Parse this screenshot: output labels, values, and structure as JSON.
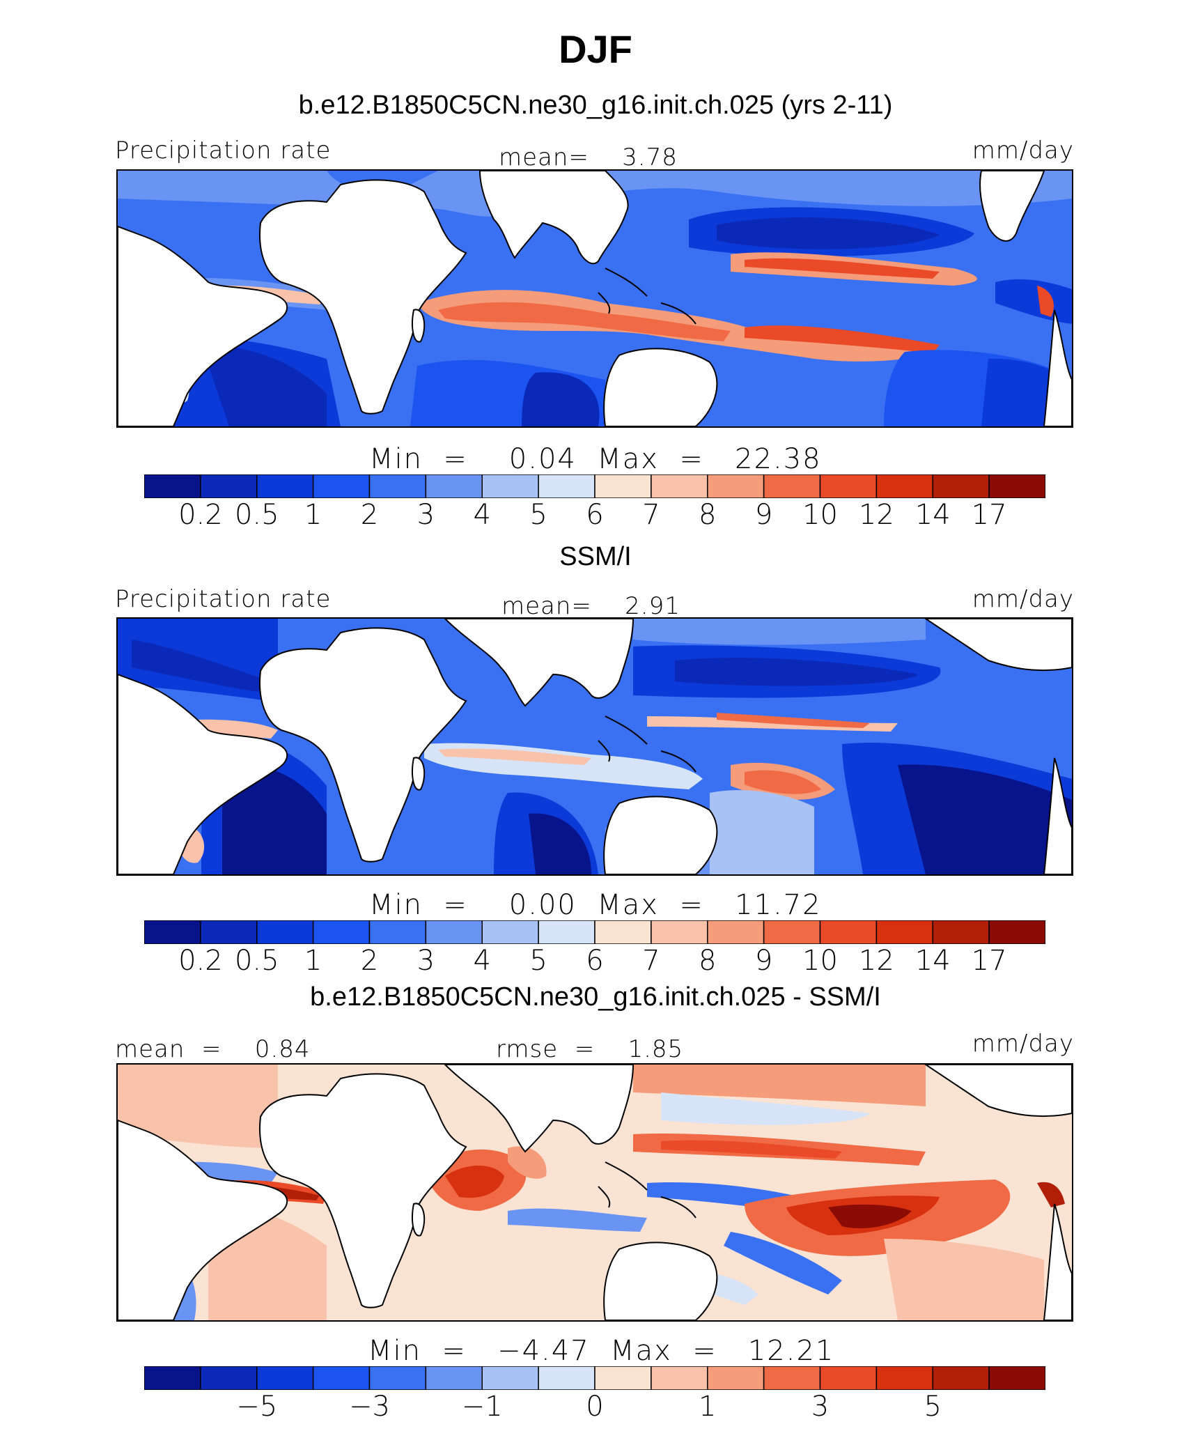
{
  "figure": {
    "title": "DJF"
  },
  "panels": [
    {
      "id": "model",
      "subtitle": "b.e12.B1850C5CN.ne30_g16.init.ch.025 (yrs 2-11)",
      "left_label": "Precipitation rate",
      "center_label": "mean=    3.78",
      "right_label": "mm/day",
      "minmax": "Min  =    0.04  Max  =   22.38",
      "colorbar_ticks": [
        "0.2",
        "0.5",
        "1",
        "2",
        "3",
        "4",
        "5",
        "6",
        "7",
        "8",
        "9",
        "10",
        "12",
        "14",
        "17"
      ],
      "colorbar_colors": [
        "#07148c",
        "#0a29b8",
        "#0b3ad8",
        "#1c54ef",
        "#3a71f2",
        "#6a94f4",
        "#a9c2f6",
        "#d7e4f7",
        "#fbe3d4",
        "#f8c3aa",
        "#f59c7a",
        "#f06a45",
        "#ea4a27",
        "#d8310f",
        "#b11f08",
        "#8a0c05"
      ]
    },
    {
      "id": "obs",
      "subtitle": "SSM/I",
      "left_label": "Precipitation rate",
      "center_label": "mean=    2.91",
      "right_label": "mm/day",
      "minmax": "Min  =    0.00  Max  =   11.72",
      "colorbar_ticks": [
        "0.2",
        "0.5",
        "1",
        "2",
        "3",
        "4",
        "5",
        "6",
        "7",
        "8",
        "9",
        "10",
        "12",
        "14",
        "17"
      ],
      "colorbar_colors": [
        "#07148c",
        "#0a29b8",
        "#0b3ad8",
        "#1c54ef",
        "#3a71f2",
        "#6a94f4",
        "#a9c2f6",
        "#d7e4f7",
        "#fbe3d4",
        "#f8c3aa",
        "#f59c7a",
        "#f06a45",
        "#ea4a27",
        "#d8310f",
        "#b11f08",
        "#8a0c05"
      ]
    },
    {
      "id": "diff",
      "subtitle": "b.e12.B1850C5CN.ne30_g16.init.ch.025 - SSM/I",
      "left_label": "mean  =    0.84",
      "center_label": "rmse  =    1.85",
      "right_label": "mm/day",
      "minmax": "Min  =   −4.47  Max  =   12.21",
      "colorbar_ticks": [
        "",
        "−5",
        "",
        "−3",
        "",
        "−1",
        "",
        "0",
        "",
        "1",
        "",
        "3",
        "",
        "5",
        ""
      ],
      "colorbar_colors": [
        "#07148c",
        "#0a29b8",
        "#0b3ad8",
        "#1c54ef",
        "#3a71f2",
        "#6a94f4",
        "#a9c2f6",
        "#d7e4f7",
        "#fbe3d4",
        "#f8c3aa",
        "#f59c7a",
        "#f06a45",
        "#ea4a27",
        "#d8310f",
        "#b11f08",
        "#8a0c05"
      ]
    }
  ],
  "map_info": {
    "type": "contour-map",
    "region": "tropical band, Atlantic–Indian–Pacific",
    "colors": {
      "land": "#ffffff",
      "coastline": "#000000",
      "ocean_dry": "#0b3ad8",
      "ocean_wet": "#f06a45"
    }
  }
}
